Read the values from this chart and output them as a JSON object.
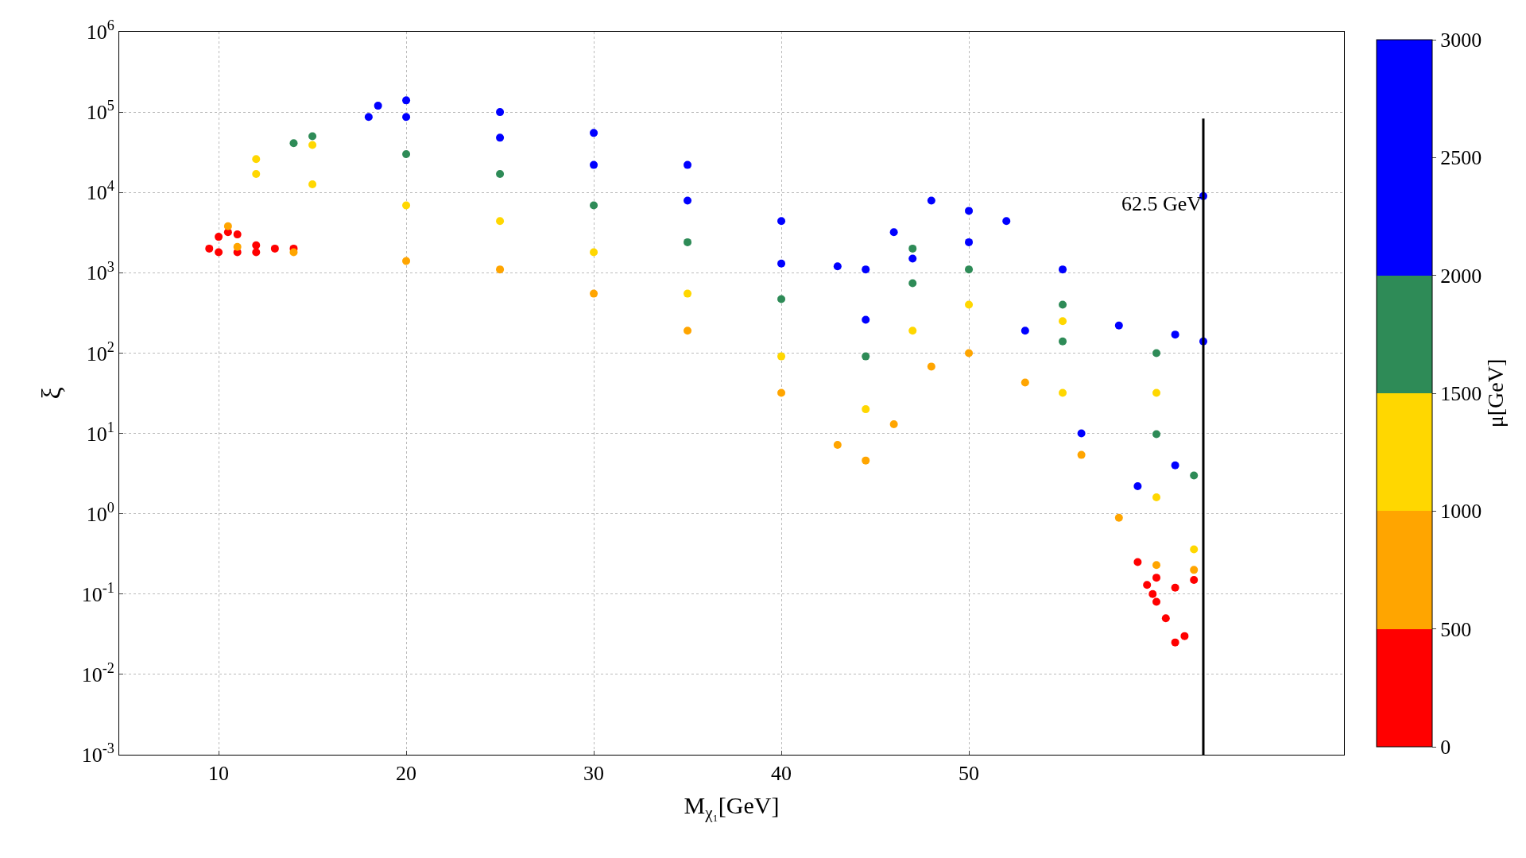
{
  "chart_data": {
    "type": "scatter",
    "xlabel": "M$_{χ₁}$[GeV]",
    "ylabel": "ξ",
    "clabel": "μ[GeV]",
    "log": "y",
    "grid": true,
    "xlim": [
      4.7,
      70
    ],
    "xticks": [
      10,
      20,
      30,
      40,
      50
    ],
    "ylim": [
      0.001,
      1000000
    ],
    "yticks": [
      {
        "value": 0.001,
        "label": "10$^{-3}$"
      },
      {
        "value": 0.01,
        "label": "10$^{-2}$"
      },
      {
        "value": 0.1,
        "label": "10$^{-1}$"
      },
      {
        "value": 1,
        "label": "10$^{0}$"
      },
      {
        "value": 10,
        "label": "10$^{1}$"
      },
      {
        "value": 100,
        "label": "10$^{2}$"
      },
      {
        "value": 1000,
        "label": "10$^{3}$"
      },
      {
        "value": 10000,
        "label": "10$^{4}$"
      },
      {
        "value": 100000,
        "label": "10$^{5}$"
      },
      {
        "value": 1000000,
        "label": "10$^{6}$"
      }
    ],
    "clim": [
      0,
      3000
    ],
    "cticks": [
      0,
      500,
      1000,
      1500,
      2000,
      2500,
      3000
    ],
    "ref_lines": [
      {
        "axis": "x",
        "value": 62.5,
        "label": "62.5 GeV",
        "color": "#000000"
      }
    ],
    "x": [
      9.5,
      10,
      10.5,
      11,
      12,
      13,
      14,
      10,
      11,
      12,
      59,
      59.5,
      60,
      60.5,
      61,
      61.5,
      62,
      61,
      60,
      59.8,
      10.5,
      11,
      14,
      20,
      25,
      30,
      35,
      40,
      43,
      44.5,
      46,
      48,
      50,
      53,
      56,
      58,
      60,
      62,
      12,
      15,
      55,
      60,
      12,
      15,
      20,
      25,
      30,
      35,
      40,
      44.5,
      47,
      50,
      55,
      60,
      62,
      15,
      47,
      55,
      60,
      14,
      20,
      25,
      30,
      35,
      40,
      44.5,
      47,
      50,
      55,
      60,
      62,
      18.5,
      20,
      25,
      30,
      35,
      40,
      43,
      44.5,
      46,
      48,
      50,
      52,
      55,
      58,
      61,
      62.5,
      18,
      20,
      25,
      30,
      35,
      40,
      44.5,
      47,
      50,
      53,
      56,
      59,
      61,
      62.5
    ],
    "values": [
      2000,
      2800,
      3200,
      3000,
      2200,
      2000,
      2000,
      1800,
      1800,
      1800,
      0.25,
      0.13,
      0.08,
      0.05,
      0.025,
      0.03,
      0.15,
      0.12,
      0.16,
      0.1,
      3800,
      2100,
      1800,
      1400,
      1100,
      550,
      190,
      32,
      7.2,
      4.6,
      13,
      68,
      100,
      43,
      5.4,
      0.89,
      0.23,
      0.2,
      26000,
      39000,
      250,
      32,
      17000,
      12600,
      6900,
      4400,
      1800,
      550,
      91,
      20,
      190,
      400,
      32,
      1.6,
      0.36,
      50000,
      2000,
      400,
      100,
      41000,
      30000,
      17000,
      6900,
      2400,
      470,
      91,
      740,
      1100,
      140,
      9.8,
      3,
      120000,
      140000,
      100000,
      55000,
      22000,
      4400,
      1200,
      1100,
      3200,
      7900,
      5900,
      4400,
      1100,
      220,
      170,
      9000,
      87000,
      87000,
      48000,
      22000,
      7900,
      1300,
      260,
      1500,
      2400,
      190,
      10,
      2.2,
      4,
      140
    ],
    "colors": [
      "#ff0000",
      "#ff0000",
      "#ff0000",
      "#ff0000",
      "#ff0000",
      "#ff0000",
      "#ff0000",
      "#ff0000",
      "#ff0000",
      "#ff0000",
      "#ff0000",
      "#ff0000",
      "#ff0000",
      "#ff0000",
      "#ff0000",
      "#ff0000",
      "#ff0000",
      "#ff0000",
      "#ff0000",
      "#ff0000",
      "#ffa500",
      "#ffa500",
      "#ffa500",
      "#ffa500",
      "#ffa500",
      "#ffa500",
      "#ffa500",
      "#ffa500",
      "#ffa500",
      "#ffa500",
      "#ffa500",
      "#ffa500",
      "#ffa500",
      "#ffa500",
      "#ffa500",
      "#ffa500",
      "#ffa500",
      "#ffa500",
      "#ffd700",
      "#ffd700",
      "#ffd700",
      "#ffd700",
      "#ffd700",
      "#ffd700",
      "#ffd700",
      "#ffd700",
      "#ffd700",
      "#ffd700",
      "#ffd700",
      "#ffd700",
      "#ffd700",
      "#ffd700",
      "#ffd700",
      "#ffd700",
      "#ffd700",
      "#2e8b57",
      "#2e8b57",
      "#2e8b57",
      "#2e8b57",
      "#2e8b57",
      "#2e8b57",
      "#2e8b57",
      "#2e8b57",
      "#2e8b57",
      "#2e8b57",
      "#2e8b57",
      "#2e8b57",
      "#2e8b57",
      "#2e8b57",
      "#2e8b57",
      "#2e8b57",
      "#0000ff",
      "#0000ff",
      "#0000ff",
      "#0000ff",
      "#0000ff",
      "#0000ff",
      "#0000ff",
      "#0000ff",
      "#0000ff",
      "#0000ff",
      "#0000ff",
      "#0000ff",
      "#0000ff",
      "#0000ff",
      "#0000ff",
      "#0000ff",
      "#0000ff",
      "#0000ff",
      "#0000ff",
      "#0000ff",
      "#0000ff",
      "#0000ff",
      "#0000ff",
      "#0000ff",
      "#0000ff",
      "#0000ff",
      "#0000ff",
      "#0000ff",
      "#0000ff",
      "#0000ff"
    ]
  }
}
